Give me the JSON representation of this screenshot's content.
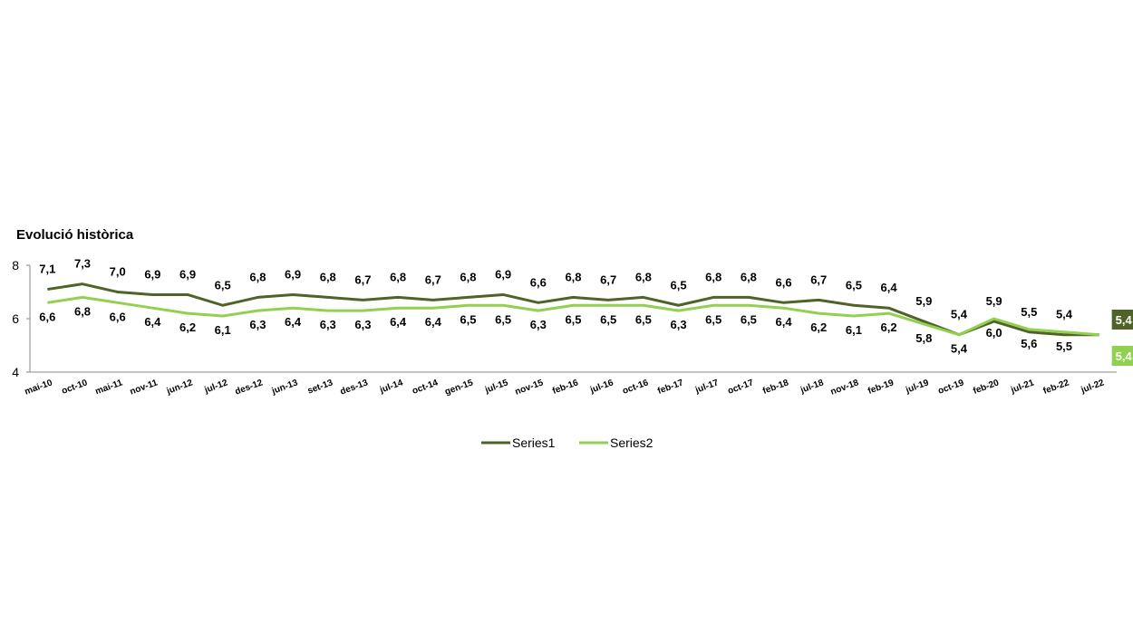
{
  "chart_data": {
    "type": "line",
    "title": "Evolució històrica",
    "categories": [
      "mai-10",
      "oct-10",
      "mai-11",
      "nov-11",
      "jun-12",
      "jul-12",
      "des-12",
      "jun-13",
      "set-13",
      "des-13",
      "jul-14",
      "oct-14",
      "gen-15",
      "jul-15",
      "nov-15",
      "feb-16",
      "jul-16",
      "oct-16",
      "feb-17",
      "jul-17",
      "oct-17",
      "feb-18",
      "jul-18",
      "nov-18",
      "feb-19",
      "jul-19",
      "oct-19",
      "feb-20",
      "jul-21",
      "feb-22",
      "jul-22"
    ],
    "series": [
      {
        "name": "Series1",
        "color": "#4f6228",
        "values": [
          7.1,
          7.3,
          7.0,
          6.9,
          6.9,
          6.5,
          6.8,
          6.9,
          6.8,
          6.7,
          6.8,
          6.7,
          6.8,
          6.9,
          6.6,
          6.8,
          6.7,
          6.8,
          6.5,
          6.8,
          6.8,
          6.6,
          6.7,
          6.5,
          6.4,
          5.9,
          5.4,
          5.9,
          5.5,
          5.4,
          5.4
        ],
        "value_labels": [
          "7,1",
          "7,3",
          "7,0",
          "6,9",
          "6,9",
          "6,5",
          "6,8",
          "6,9",
          "6,8",
          "6,7",
          "6,8",
          "6,7",
          "6,8",
          "6,9",
          "6,6",
          "6,8",
          "6,7",
          "6,8",
          "6,5",
          "6,8",
          "6,8",
          "6,6",
          "6,7",
          "6,5",
          "6,4",
          "5,9",
          "5,4",
          "5,9",
          "5,5",
          "5,4",
          "5,4"
        ]
      },
      {
        "name": "Series2",
        "color": "#92d050",
        "values": [
          6.6,
          6.8,
          6.6,
          6.4,
          6.2,
          6.1,
          6.3,
          6.4,
          6.3,
          6.3,
          6.4,
          6.4,
          6.5,
          6.5,
          6.3,
          6.5,
          6.5,
          6.5,
          6.3,
          6.5,
          6.5,
          6.4,
          6.2,
          6.1,
          6.2,
          5.8,
          5.4,
          6.0,
          5.6,
          5.5,
          5.4
        ],
        "value_labels": [
          "6,6",
          "6,8",
          "6,6",
          "6,4",
          "6,2",
          "6,1",
          "6,3",
          "6,4",
          "6,3",
          "6,3",
          "6,4",
          "6,4",
          "6,5",
          "6,5",
          "6,3",
          "6,5",
          "6,5",
          "6,5",
          "6,3",
          "6,5",
          "6,5",
          "6,4",
          "6,2",
          "6,1",
          "6,2",
          "5,8",
          "5,4",
          "6,0",
          "5,6",
          "5,5",
          "5,4"
        ]
      }
    ],
    "ylim": [
      4,
      8
    ],
    "yticks": [
      4,
      6,
      8
    ],
    "grid": false
  }
}
